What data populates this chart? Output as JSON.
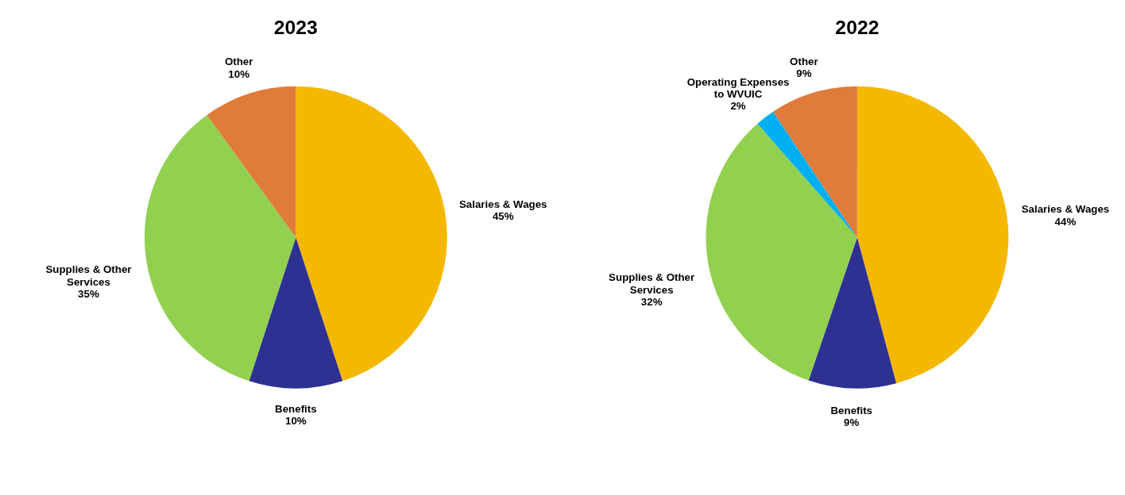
{
  "chart_data": [
    {
      "type": "pie",
      "title": "2023",
      "categories": [
        "Salaries & Wages",
        "Benefits",
        "Supplies & Other Services",
        "Other"
      ],
      "values": [
        45,
        10,
        35,
        10
      ],
      "value_labels": [
        "45%",
        "10%",
        "35%",
        "10%"
      ],
      "colors": [
        "#f5b800",
        "#2e3192",
        "#92d050",
        "#e07b39"
      ],
      "data_labels": true
    },
    {
      "type": "pie",
      "title": "2022",
      "categories": [
        "Salaries & Wages",
        "Benefits",
        "Supplies & Other Services",
        "Operating Expenses to WVUIC",
        "Other"
      ],
      "values": [
        44,
        9,
        32,
        2,
        9
      ],
      "value_labels": [
        "44%",
        "9%",
        "32%",
        "2%",
        "9%"
      ],
      "colors": [
        "#f5b800",
        "#2e3192",
        "#92d050",
        "#00b0f0",
        "#e07b39"
      ],
      "data_labels": true
    }
  ]
}
